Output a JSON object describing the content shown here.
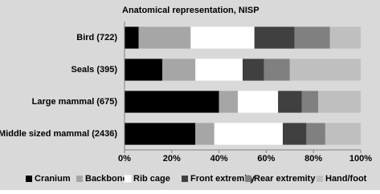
{
  "chart_data": {
    "type": "stacked-bar-horizontal",
    "title": "Anatomical representation, NISP",
    "categories": [
      "Bird (722)",
      "Seals (395)",
      "Large mammal  (675)",
      "Middle sized mammal  (2436)"
    ],
    "series": [
      {
        "name": "Cranium",
        "color": "#000000",
        "values": [
          6,
          16,
          40,
          30
        ]
      },
      {
        "name": "Backbone",
        "color": "#a6a6a6",
        "values": [
          22,
          14,
          8,
          8
        ]
      },
      {
        "name": "Rib cage",
        "color": "#ffffff",
        "values": [
          27,
          20,
          17,
          29
        ]
      },
      {
        "name": "Front extremity",
        "color": "#404040",
        "values": [
          17,
          9,
          10,
          10
        ]
      },
      {
        "name": "Rear extremity",
        "color": "#808080",
        "values": [
          15,
          11,
          7,
          8
        ]
      },
      {
        "name": "Hand/foot",
        "color": "#bfbfbf",
        "values": [
          13,
          30,
          18,
          15
        ]
      }
    ],
    "xlim": [
      0,
      100
    ],
    "xticks": [
      {
        "value": 0,
        "label": "0%"
      },
      {
        "value": 20,
        "label": "20%"
      },
      {
        "value": 40,
        "label": "40%"
      },
      {
        "value": 60,
        "label": "60%"
      },
      {
        "value": 80,
        "label": "80%"
      },
      {
        "value": 100,
        "label": "100%"
      }
    ],
    "legend": "bottom"
  }
}
